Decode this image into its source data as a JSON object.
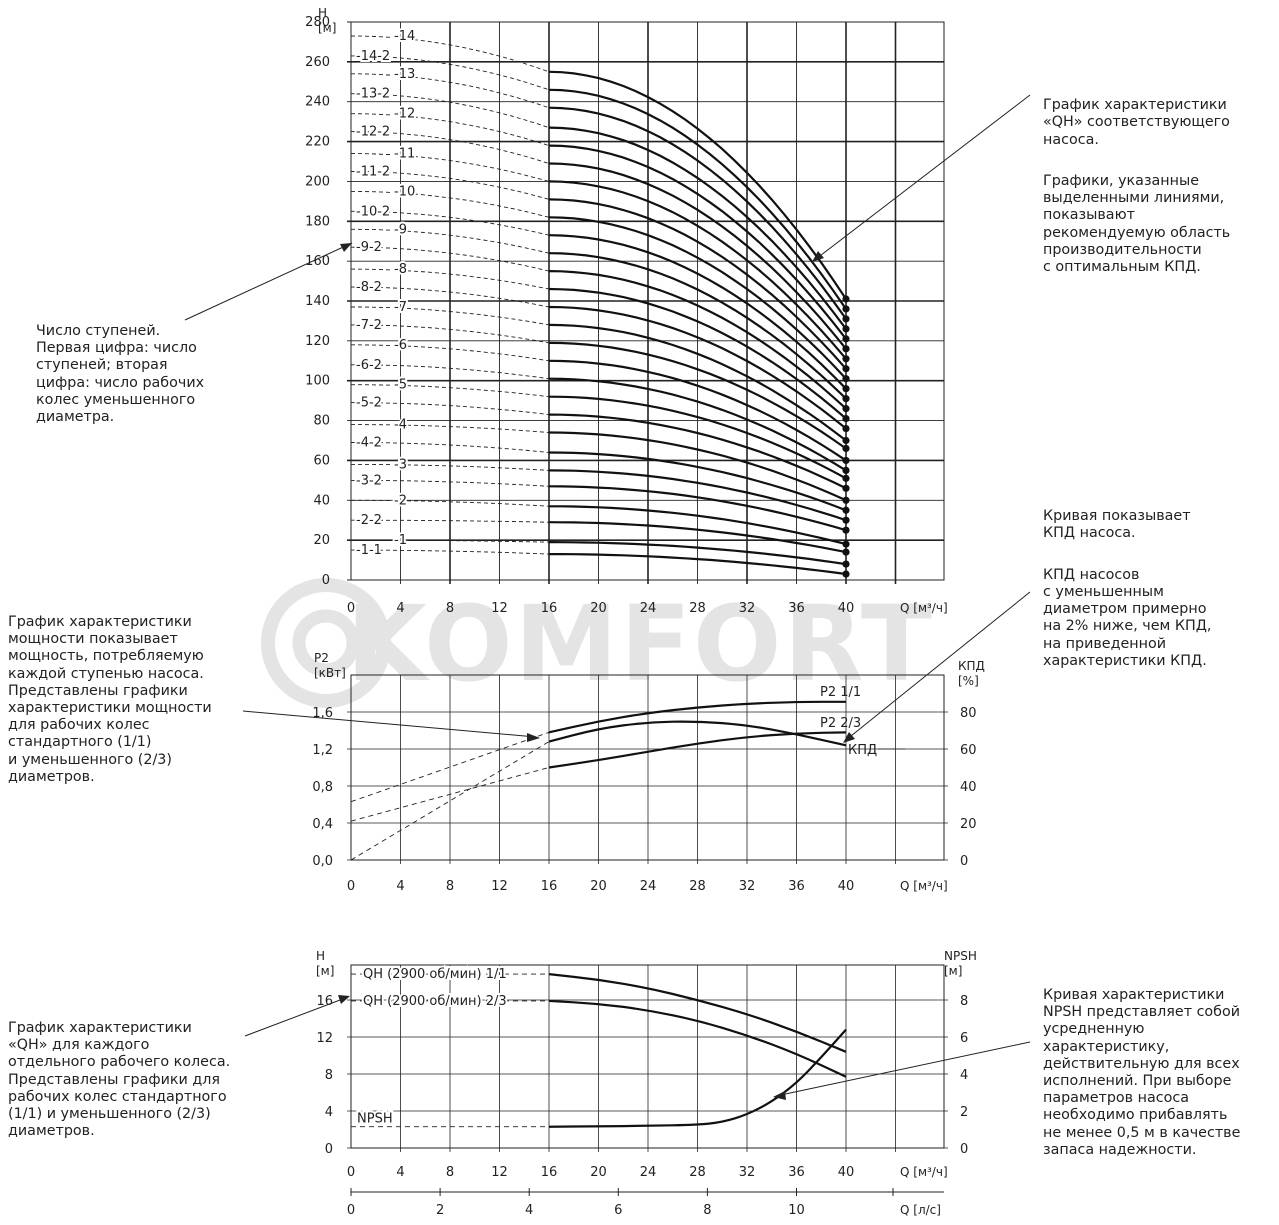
{
  "watermark": "KOMFORT",
  "chart_data": [
    {
      "type": "line",
      "ylabel": "H\n[м]",
      "xlabel": "Q [м³/ч]",
      "xlim": [
        0,
        40
      ],
      "ylim": [
        0,
        280
      ],
      "x_ticks": [
        "0",
        "4",
        "8",
        "12",
        "16",
        "20",
        "24",
        "28",
        "32",
        "36",
        "40"
      ],
      "y_ticks": [
        "0",
        "20",
        "40",
        "60",
        "80",
        "100",
        "120",
        "140",
        "160",
        "180",
        "200",
        "220",
        "240",
        "260",
        "280"
      ],
      "grid": true,
      "recommended_range_q": [
        16,
        40
      ],
      "series": [
        {
          "name": "-1-1",
          "h0": 15,
          "h16": 13,
          "h40": 3
        },
        {
          "name": "-1",
          "h0": 20,
          "h16": 19,
          "h40": 8
        },
        {
          "name": "-2-2",
          "h0": 30,
          "h16": 29,
          "h40": 14
        },
        {
          "name": "-2",
          "h0": 40,
          "h16": 37,
          "h40": 18
        },
        {
          "name": "-3-2",
          "h0": 50,
          "h16": 47,
          "h40": 25
        },
        {
          "name": "-3",
          "h0": 58,
          "h16": 55,
          "h40": 30
        },
        {
          "name": "-4-2",
          "h0": 69,
          "h16": 64,
          "h40": 35
        },
        {
          "name": "-4",
          "h0": 78,
          "h16": 74,
          "h40": 40
        },
        {
          "name": "-5-2",
          "h0": 89,
          "h16": 83,
          "h40": 46
        },
        {
          "name": "-5",
          "h0": 98,
          "h16": 92,
          "h40": 51
        },
        {
          "name": "-6-2",
          "h0": 108,
          "h16": 101,
          "h40": 55
        },
        {
          "name": "-6",
          "h0": 118,
          "h16": 110,
          "h40": 60
        },
        {
          "name": "-7-2",
          "h0": 128,
          "h16": 119,
          "h40": 66
        },
        {
          "name": "-7",
          "h0": 137,
          "h16": 128,
          "h40": 70
        },
        {
          "name": "-8-2",
          "h0": 147,
          "h16": 137,
          "h40": 76
        },
        {
          "name": "-8",
          "h0": 156,
          "h16": 146,
          "h40": 81
        },
        {
          "name": "-9-2",
          "h0": 167,
          "h16": 155,
          "h40": 86
        },
        {
          "name": "-9",
          "h0": 176,
          "h16": 164,
          "h40": 91
        },
        {
          "name": "-10-2",
          "h0": 185,
          "h16": 173,
          "h40": 96
        },
        {
          "name": "-10",
          "h0": 195,
          "h16": 182,
          "h40": 101
        },
        {
          "name": "-11-2",
          "h0": 205,
          "h16": 191,
          "h40": 106
        },
        {
          "name": "-11",
          "h0": 214,
          "h16": 200,
          "h40": 111
        },
        {
          "name": "-12-2",
          "h0": 225,
          "h16": 209,
          "h40": 116
        },
        {
          "name": "-12",
          "h0": 234,
          "h16": 218,
          "h40": 121
        },
        {
          "name": "-13-2",
          "h0": 244,
          "h16": 227,
          "h40": 126
        },
        {
          "name": "-13",
          "h0": 254,
          "h16": 237,
          "h40": 131
        },
        {
          "name": "-14-2",
          "h0": 263,
          "h16": 246,
          "h40": 136
        },
        {
          "name": "-14",
          "h0": 273,
          "h16": 255,
          "h40": 141
        }
      ]
    },
    {
      "type": "line",
      "ylabel": "P2\n[кВт]",
      "y2label": "КПД\n[%]",
      "xlabel": "Q [м³/ч]",
      "xlim": [
        0,
        40
      ],
      "ylim": [
        0,
        1.8
      ],
      "y2lim": [
        0,
        90
      ],
      "x_ticks": [
        "0",
        "4",
        "8",
        "12",
        "16",
        "20",
        "24",
        "28",
        "32",
        "36",
        "40"
      ],
      "y_ticks": [
        "0,0",
        "0,4",
        "0,8",
        "1,2",
        "1,6"
      ],
      "y2_ticks": [
        "0",
        "20",
        "40",
        "60",
        "80"
      ],
      "series": [
        {
          "name": "P2 1/1",
          "axis": "left",
          "x": [
            16,
            20,
            24,
            28,
            32,
            36,
            40
          ],
          "y": [
            1.38,
            1.5,
            1.59,
            1.65,
            1.69,
            1.71,
            1.71
          ],
          "dashed_from": [
            0,
            0.63
          ]
        },
        {
          "name": "P2 2/3",
          "axis": "left",
          "x": [
            16,
            20,
            24,
            28,
            32,
            36,
            40
          ],
          "y": [
            1.0,
            1.08,
            1.17,
            1.26,
            1.33,
            1.37,
            1.38
          ],
          "dashed_from": [
            0,
            0.42
          ]
        },
        {
          "name": "КПД",
          "axis": "right",
          "x": [
            16,
            20,
            24,
            28,
            32,
            36,
            40
          ],
          "y": [
            64,
            71,
            74.5,
            75,
            73,
            68,
            62
          ],
          "dashed_from": [
            0,
            0
          ]
        }
      ]
    },
    {
      "type": "line",
      "ylabel": "H\n[м]",
      "y2label": "NPSH\n[м]",
      "xlabel": "Q [м³/ч]",
      "x2label": "Q [л/с]",
      "xlim": [
        0,
        40
      ],
      "ylim": [
        0,
        18
      ],
      "y2lim": [
        0,
        9
      ],
      "x_ticks": [
        "0",
        "4",
        "8",
        "12",
        "16",
        "20",
        "24",
        "28",
        "32",
        "36",
        "40"
      ],
      "x2_ticks": [
        "0",
        "2",
        "4",
        "6",
        "8",
        "10"
      ],
      "y_ticks": [
        "0",
        "4",
        "8",
        "12",
        "16"
      ],
      "y2_ticks": [
        "0",
        "2",
        "4",
        "6",
        "8"
      ],
      "series": [
        {
          "name": "QH (2900 об/мин) 1/1",
          "axis": "left",
          "x": [
            16,
            20,
            24,
            28,
            32,
            36,
            40
          ],
          "y": [
            18.8,
            18.2,
            17.3,
            16.0,
            14.5,
            12.6,
            10.4
          ],
          "dashed_at": 18.8
        },
        {
          "name": "QH (2900 об/мин) 2/3",
          "axis": "left",
          "x": [
            16,
            20,
            24,
            28,
            32,
            36,
            40
          ],
          "y": [
            15.9,
            15.6,
            14.9,
            13.8,
            12.2,
            10.2,
            7.7
          ],
          "dashed_at": 15.9
        },
        {
          "name": "NPSH",
          "axis": "right",
          "x": [
            16,
            20,
            24,
            28,
            30,
            32,
            34,
            36,
            38,
            40
          ],
          "y": [
            1.15,
            1.17,
            1.2,
            1.25,
            1.4,
            1.8,
            2.5,
            3.5,
            4.9,
            6.4
          ],
          "dashed_at": 1.15
        }
      ]
    }
  ],
  "notes": {
    "stages": "Число ступеней.\nПервая цифра: число\nступеней; вторая\nцифра: число рабочих\nколес уменьшенного\nдиаметра.",
    "qh_main_1": "График характеристики\n«QH» соответствующего\nнасоса.",
    "qh_main_2": "Графики, указанные\nвыделенными линиями,\nпоказывают\nрекомендуемую область\nпроизводительности\nс оптимальным КПД.",
    "power": "График характеристики\nмощности показывает\nмощность, потребляемую\nкаждой ступенью насоса.\nПредставлены графики\nхарактеристики мощности\nдля рабочих колес\nстандартного (1/1)\nи уменьшенного (2/3)\nдиаметров.",
    "eff_1": "Кривая показывает\nКПД насоса.",
    "eff_2": "КПД насосов\nс уменьшенным\nдиаметром примерно\nна 2% ниже, чем КПД,\nна приведенной\nхарактеристики КПД.",
    "qh_single": "График характеристики\n«QH» для каждого\nотдельного рабочего колеса.\nПредставлены графики для\nрабочих колес стандартного\n(1/1) и уменьшенного (2/3)\nдиаметров.",
    "npsh": "Кривая характеристики\nNPSH представляет собой\nусредненную\nхарактеристику,\nдействительную для всех\nисполнений. При выборе\nпараметров насоса\nнеобходимо прибавлять\nне менее 0,5 м в качестве\nзапаса надежности."
  }
}
